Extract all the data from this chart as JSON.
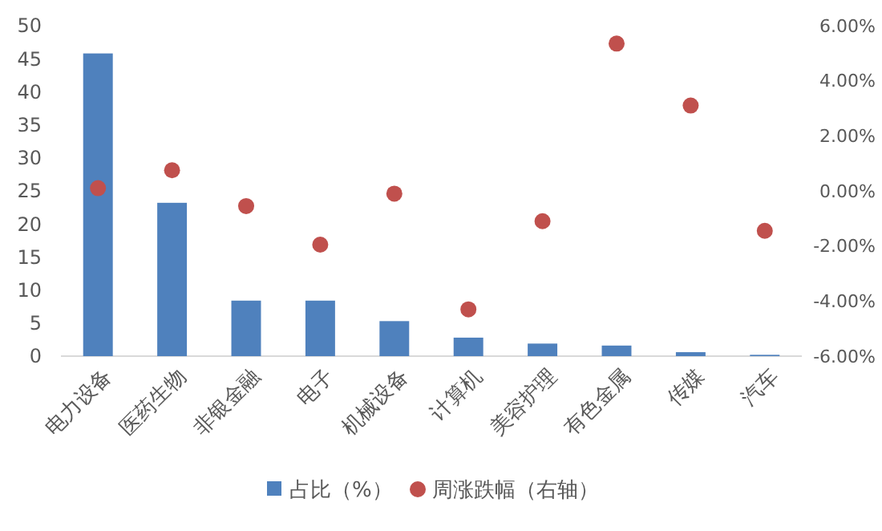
{
  "chart_data": {
    "type": "bar",
    "categories": [
      "电力设备",
      "医药生物",
      "非银金融",
      "电子",
      "机械设备",
      "计算机",
      "美容护理",
      "有色金属",
      "传媒",
      "汽车"
    ],
    "series": [
      {
        "name": "占比（%）",
        "color": "#4f81bd",
        "values": [
          45.8,
          23.2,
          8.4,
          8.4,
          5.3,
          2.8,
          1.9,
          1.6,
          0.6,
          0.2
        ]
      },
      {
        "name": "周涨跌幅（右轴）",
        "type": "scatter",
        "axis": "y2",
        "color": "#c0504d",
        "values": [
          0.1,
          0.75,
          -0.55,
          -1.95,
          -0.1,
          -4.3,
          -1.1,
          5.35,
          3.1,
          -1.45
        ]
      }
    ],
    "ylim": [
      0,
      50
    ],
    "yticks": [
      0,
      5,
      10,
      15,
      20,
      25,
      30,
      35,
      40,
      45,
      50
    ],
    "y2lim": [
      -6,
      6
    ],
    "y2ticks": [
      {
        "value": -6,
        "label": "-6.00%"
      },
      {
        "value": -4,
        "label": "-4.00%"
      },
      {
        "value": -2,
        "label": "-2.00%"
      },
      {
        "value": 0,
        "label": "0.00%"
      },
      {
        "value": 2,
        "label": "2.00%"
      },
      {
        "value": 4,
        "label": "4.00%"
      },
      {
        "value": 6,
        "label": "6.00%"
      }
    ],
    "legend": "bottom",
    "marker": "circle"
  }
}
